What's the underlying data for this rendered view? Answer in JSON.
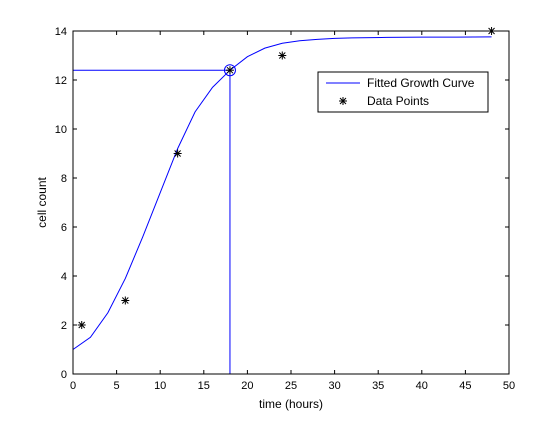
{
  "chart_data": {
    "type": "line",
    "title": "",
    "xlabel": "time (hours)",
    "ylabel": "cell count",
    "xlim": [
      0,
      50
    ],
    "ylim": [
      0,
      14
    ],
    "x_ticks": [
      0,
      5,
      10,
      15,
      20,
      25,
      30,
      35,
      40,
      45,
      50
    ],
    "y_ticks": [
      0,
      2,
      4,
      6,
      8,
      10,
      12,
      14
    ],
    "grid": false,
    "legend_position": "top-right",
    "series": [
      {
        "name": "Fitted Growth Curve",
        "kind": "line",
        "color": "#0000ff",
        "x": [
          0,
          2,
          4,
          6,
          8,
          10,
          12,
          14,
          16,
          18,
          20,
          22,
          24,
          26,
          28,
          30,
          32,
          36,
          40,
          44,
          48
        ],
        "y": [
          1.0,
          1.5,
          2.5,
          3.9,
          5.6,
          7.4,
          9.2,
          10.7,
          11.7,
          12.4,
          12.95,
          13.3,
          13.5,
          13.6,
          13.66,
          13.7,
          13.72,
          13.74,
          13.75,
          13.75,
          13.76
        ]
      },
      {
        "name": "Data Points",
        "kind": "marker",
        "marker": "asterisk",
        "color": "#000000",
        "x": [
          1,
          6,
          12,
          18,
          24,
          48
        ],
        "y": [
          2,
          3,
          9,
          12.4,
          13,
          14
        ]
      }
    ],
    "annotations": [
      {
        "kind": "crosshair-point",
        "marker": "circle",
        "color": "#0000ff",
        "x": 18,
        "y": 12.4
      }
    ]
  }
}
